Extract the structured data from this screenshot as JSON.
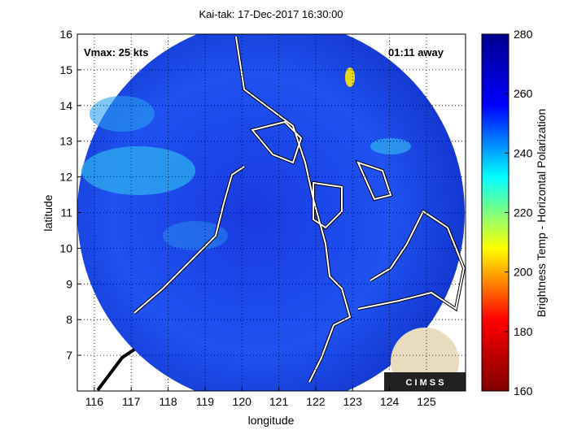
{
  "chart_data": {
    "type": "map",
    "title": "Kai-tak: 17-Dec-2017 16:30:00",
    "annotations": [
      "Vmax: 25 kts",
      "01:11 away"
    ],
    "x_label": "longitude",
    "y_label": "latitude",
    "xlim": [
      115.54,
      126.06
    ],
    "xticks": [
      116,
      117,
      118,
      119,
      120,
      121,
      122,
      123,
      124,
      125
    ],
    "ylim": [
      6.0,
      16.0
    ],
    "yticks": [
      7,
      8,
      9,
      10,
      11,
      12,
      13,
      14,
      15,
      16
    ],
    "grid": true,
    "colorbar": {
      "label": "Brightness Temp - Horizontal Polarization",
      "lim": [
        160,
        280
      ],
      "ticks": [
        160,
        180,
        200,
        220,
        240,
        260,
        280
      ],
      "colors": [
        "#800000",
        "#ff0000",
        "#ffff00",
        "#00ffff",
        "#0000ff",
        "#00008f"
      ]
    },
    "logo": "C I M S S"
  }
}
